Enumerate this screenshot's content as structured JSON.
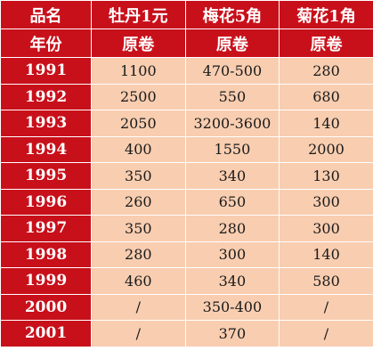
{
  "header": {
    "row1": [
      "品名",
      "牡丹1元",
      "梅花5角",
      "菊花1角"
    ],
    "row2": [
      "年份",
      "原卷",
      "原卷",
      "原卷"
    ]
  },
  "rows": [
    {
      "year": "1991",
      "peony_1_yuan": "1100",
      "plum_5_jiao": "470-500",
      "chrysanthemum_1_jiao": "280"
    },
    {
      "year": "1992",
      "peony_1_yuan": "2500",
      "plum_5_jiao": "550",
      "chrysanthemum_1_jiao": "680"
    },
    {
      "year": "1993",
      "peony_1_yuan": "2050",
      "plum_5_jiao": "3200-3600",
      "chrysanthemum_1_jiao": "140"
    },
    {
      "year": "1994",
      "peony_1_yuan": "400",
      "plum_5_jiao": "1550",
      "chrysanthemum_1_jiao": "2000"
    },
    {
      "year": "1995",
      "peony_1_yuan": "350",
      "plum_5_jiao": "340",
      "chrysanthemum_1_jiao": "130"
    },
    {
      "year": "1996",
      "peony_1_yuan": "260",
      "plum_5_jiao": "650",
      "chrysanthemum_1_jiao": "300"
    },
    {
      "year": "1997",
      "peony_1_yuan": "350",
      "plum_5_jiao": "280",
      "chrysanthemum_1_jiao": "300"
    },
    {
      "year": "1998",
      "peony_1_yuan": "280",
      "plum_5_jiao": "300",
      "chrysanthemum_1_jiao": "140"
    },
    {
      "year": "1999",
      "peony_1_yuan": "460",
      "plum_5_jiao": "340",
      "chrysanthemum_1_jiao": "580"
    },
    {
      "year": "2000",
      "peony_1_yuan": "/",
      "plum_5_jiao": "350-400",
      "chrysanthemum_1_jiao": "/"
    },
    {
      "year": "2001",
      "peony_1_yuan": "/",
      "plum_5_jiao": "370",
      "chrysanthemum_1_jiao": "/"
    }
  ],
  "colors": {
    "header_bg": "#c8101b",
    "header_text": "#ffffff",
    "cell_bg": "#f8cdb0",
    "cell_text": "#1a1a1a"
  }
}
